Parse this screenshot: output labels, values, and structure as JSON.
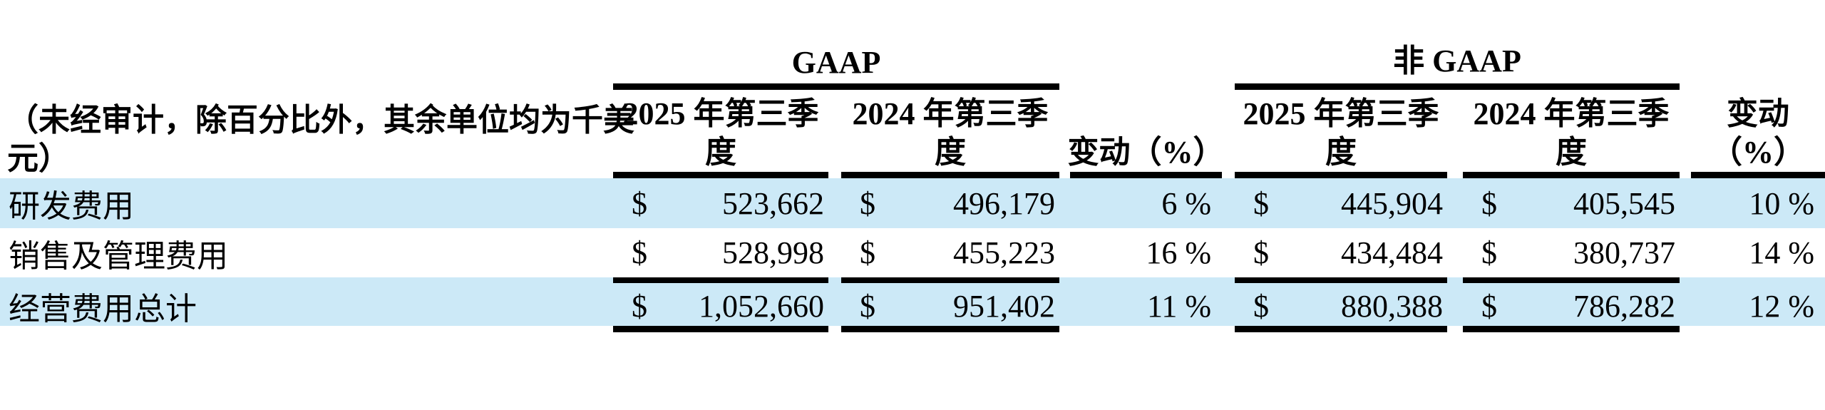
{
  "meta": {
    "background_color": "#ffffff",
    "highlight_color": "#cce9f7",
    "rule_color": "#000000",
    "text_color": "#000000"
  },
  "table": {
    "unit_note_lines": [
      "（未经审计，除百分比外，其余单位均为千美",
      "元）"
    ],
    "groups": [
      {
        "id": "gaap",
        "label": "GAAP"
      },
      {
        "id": "non-gaap",
        "label": "非 GAAP"
      }
    ],
    "columns": [
      {
        "id": "gaap-q3-2025",
        "lines": [
          "2025 年第三季",
          "度"
        ]
      },
      {
        "id": "gaap-q3-2024",
        "lines": [
          "2024 年第三季",
          "度"
        ]
      },
      {
        "id": "gaap-change",
        "lines": [
          "变动（%）"
        ]
      },
      {
        "id": "non-gaap-q3-2025",
        "lines": [
          "2025 年第三季",
          "度"
        ]
      },
      {
        "id": "non-gaap-q3-2024",
        "lines": [
          "2024 年第三季",
          "度"
        ]
      },
      {
        "id": "non-gaap-change",
        "lines": [
          "变动",
          "（%）"
        ]
      }
    ],
    "currency_symbol": "$",
    "rows": [
      {
        "label": "研发费用",
        "gaap_2025": "523,662",
        "gaap_2024": "496,179",
        "gaap_change": "6 %",
        "non_gaap_2025": "445,904",
        "non_gaap_2024": "405,545",
        "non_gaap_change": "10 %"
      },
      {
        "label": "销售及管理费用",
        "gaap_2025": "528,998",
        "gaap_2024": "455,223",
        "gaap_change": "16 %",
        "non_gaap_2025": "434,484",
        "non_gaap_2024": "380,737",
        "non_gaap_change": "14 %"
      },
      {
        "label": "经营费用总计",
        "gaap_2025": "1,052,660",
        "gaap_2024": "951,402",
        "gaap_change": "11 %",
        "non_gaap_2025": "880,388",
        "non_gaap_2024": "786,282",
        "non_gaap_change": "12 %"
      }
    ]
  }
}
